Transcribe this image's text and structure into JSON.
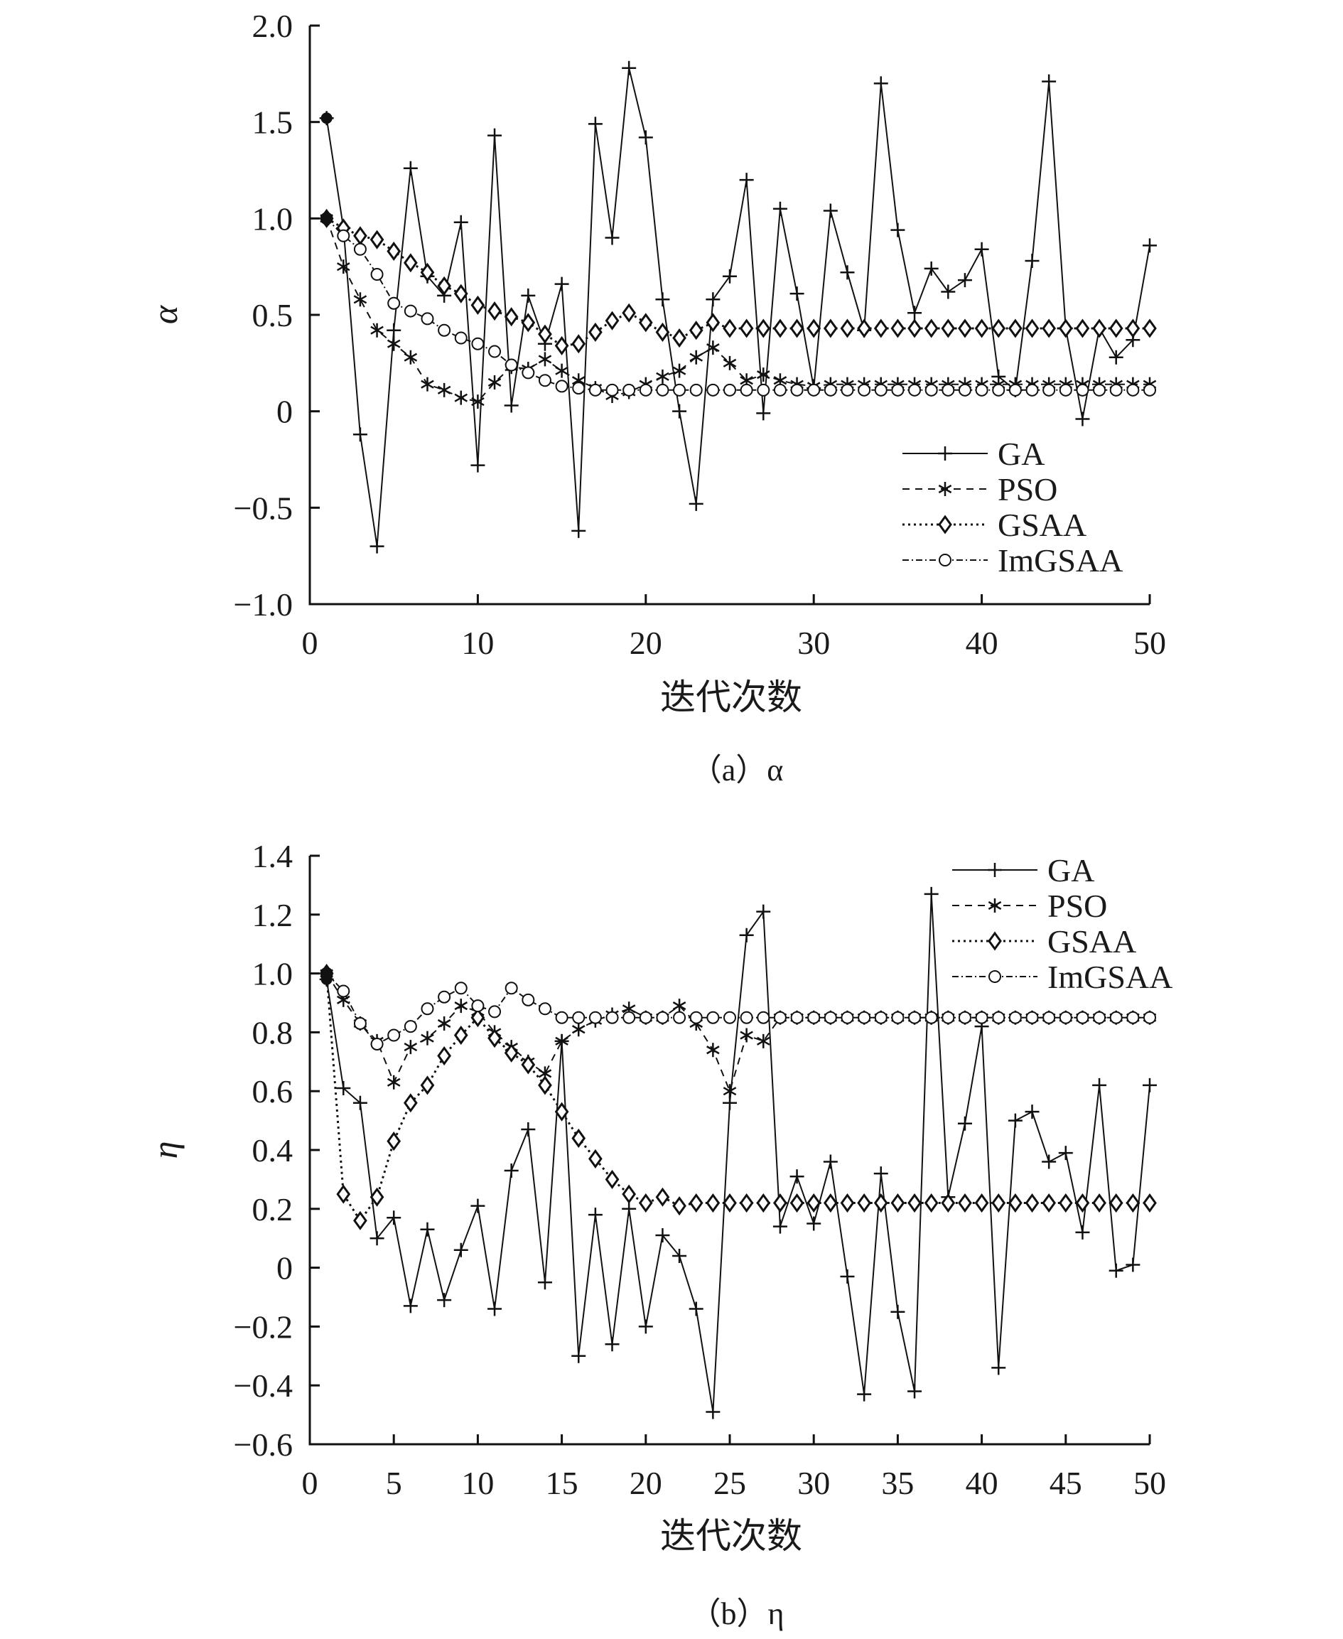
{
  "chart_data": [
    {
      "type": "line",
      "caption": "（a）α",
      "ylabel": "α",
      "xlabel": "迭代次数",
      "xlim": [
        0,
        50
      ],
      "ylim": [
        -1.0,
        2.0
      ],
      "xticks": [
        "0",
        "10",
        "20",
        "30",
        "40",
        "50"
      ],
      "yticks": [
        "−1.0",
        "−0.5",
        "0",
        "0.5",
        "1.0",
        "1.5",
        "2.0"
      ],
      "grid": false,
      "legend_position": "lower-right",
      "series": [
        {
          "name": "GA",
          "marker": "plus",
          "dash": "",
          "x": [
            1,
            2,
            3,
            4,
            5,
            6,
            7,
            8,
            9,
            10,
            11,
            12,
            13,
            14,
            15,
            16,
            17,
            18,
            19,
            20,
            21,
            22,
            23,
            24,
            25,
            26,
            27,
            28,
            29,
            30,
            31,
            32,
            33,
            34,
            35,
            36,
            37,
            38,
            39,
            40,
            41,
            42,
            43,
            44,
            45,
            46,
            47,
            48,
            49,
            50
          ],
          "y": [
            1.52,
            0.95,
            -0.12,
            -0.7,
            0.42,
            1.26,
            0.7,
            0.6,
            0.98,
            -0.28,
            1.43,
            0.03,
            0.6,
            0.35,
            0.66,
            -0.62,
            1.49,
            0.9,
            1.78,
            1.42,
            0.58,
            0.0,
            -0.48,
            0.58,
            0.7,
            1.2,
            -0.01,
            1.05,
            0.61,
            0.12,
            1.04,
            0.72,
            0.42,
            1.7,
            0.94,
            0.51,
            0.74,
            0.62,
            0.68,
            0.84,
            0.18,
            0.11,
            0.78,
            1.71,
            0.43,
            -0.04,
            0.43,
            0.28,
            0.37,
            0.86
          ]
        },
        {
          "name": "PSO",
          "marker": "star",
          "dash": "10,8",
          "x": [
            1,
            2,
            3,
            4,
            5,
            6,
            7,
            8,
            9,
            10,
            11,
            12,
            13,
            14,
            15,
            16,
            17,
            18,
            19,
            20,
            21,
            22,
            23,
            24,
            25,
            26,
            27,
            28,
            29,
            30,
            31,
            32,
            33,
            34,
            35,
            36,
            37,
            38,
            39,
            40,
            41,
            42,
            43,
            44,
            45,
            46,
            47,
            48,
            49,
            50
          ],
          "y": [
            1.0,
            0.75,
            0.58,
            0.42,
            0.35,
            0.28,
            0.14,
            0.11,
            0.07,
            0.05,
            0.15,
            0.23,
            0.22,
            0.27,
            0.21,
            0.16,
            0.12,
            0.08,
            0.1,
            0.14,
            0.18,
            0.21,
            0.28,
            0.33,
            0.25,
            0.16,
            0.19,
            0.16,
            0.14,
            0.13,
            0.14,
            0.14,
            0.14,
            0.14,
            0.14,
            0.14,
            0.14,
            0.14,
            0.14,
            0.14,
            0.14,
            0.14,
            0.14,
            0.14,
            0.14,
            0.14,
            0.14,
            0.14,
            0.14,
            0.14
          ]
        },
        {
          "name": "GSAA",
          "marker": "diamond",
          "dash": "3,5",
          "x": [
            1,
            2,
            3,
            4,
            5,
            6,
            7,
            8,
            9,
            10,
            11,
            12,
            13,
            14,
            15,
            16,
            17,
            18,
            19,
            20,
            21,
            22,
            23,
            24,
            25,
            26,
            27,
            28,
            29,
            30,
            31,
            32,
            33,
            34,
            35,
            36,
            37,
            38,
            39,
            40,
            41,
            42,
            43,
            44,
            45,
            46,
            47,
            48,
            49,
            50
          ],
          "y": [
            1.0,
            0.95,
            0.91,
            0.89,
            0.83,
            0.77,
            0.72,
            0.65,
            0.61,
            0.55,
            0.52,
            0.49,
            0.46,
            0.4,
            0.34,
            0.35,
            0.41,
            0.47,
            0.51,
            0.46,
            0.41,
            0.38,
            0.42,
            0.46,
            0.43,
            0.43,
            0.43,
            0.43,
            0.43,
            0.43,
            0.43,
            0.43,
            0.43,
            0.43,
            0.43,
            0.43,
            0.43,
            0.43,
            0.43,
            0.43,
            0.43,
            0.43,
            0.43,
            0.43,
            0.43,
            0.43,
            0.43,
            0.43,
            0.43,
            0.43
          ]
        },
        {
          "name": "ImGSAA",
          "marker": "circle",
          "dash": "9,4,2,4",
          "x": [
            1,
            2,
            3,
            4,
            5,
            6,
            7,
            8,
            9,
            10,
            11,
            12,
            13,
            14,
            15,
            16,
            17,
            18,
            19,
            20,
            21,
            22,
            23,
            24,
            25,
            26,
            27,
            28,
            29,
            30,
            31,
            32,
            33,
            34,
            35,
            36,
            37,
            38,
            39,
            40,
            41,
            42,
            43,
            44,
            45,
            46,
            47,
            48,
            49,
            50
          ],
          "y": [
            1.0,
            0.91,
            0.84,
            0.71,
            0.56,
            0.52,
            0.48,
            0.42,
            0.38,
            0.35,
            0.31,
            0.24,
            0.2,
            0.16,
            0.13,
            0.12,
            0.11,
            0.11,
            0.11,
            0.11,
            0.11,
            0.11,
            0.11,
            0.11,
            0.11,
            0.11,
            0.11,
            0.11,
            0.11,
            0.11,
            0.11,
            0.11,
            0.11,
            0.11,
            0.11,
            0.11,
            0.11,
            0.11,
            0.11,
            0.11,
            0.11,
            0.11,
            0.11,
            0.11,
            0.11,
            0.11,
            0.11,
            0.11,
            0.11,
            0.11
          ]
        }
      ]
    },
    {
      "type": "line",
      "caption": "（b）η",
      "ylabel": "η",
      "xlabel": "迭代次数",
      "xlim": [
        0,
        50
      ],
      "ylim": [
        -0.6,
        1.4
      ],
      "xticks": [
        "0",
        "5",
        "10",
        "15",
        "20",
        "25",
        "30",
        "35",
        "40",
        "45",
        "50"
      ],
      "yticks": [
        "−0.6",
        "−0.4",
        "−0.2",
        "0",
        "0.2",
        "0.4",
        "0.6",
        "0.8",
        "1.0",
        "1.2",
        "1.4"
      ],
      "grid": false,
      "legend_position": "top-right",
      "series": [
        {
          "name": "GA",
          "marker": "plus",
          "dash": "",
          "x": [
            1,
            2,
            3,
            4,
            5,
            6,
            7,
            8,
            9,
            10,
            11,
            12,
            13,
            14,
            15,
            16,
            17,
            18,
            19,
            20,
            21,
            22,
            23,
            24,
            25,
            26,
            27,
            28,
            29,
            30,
            31,
            32,
            33,
            34,
            35,
            36,
            37,
            38,
            39,
            40,
            41,
            42,
            43,
            44,
            45,
            46,
            47,
            48,
            49,
            50
          ],
          "y": [
            0.98,
            0.61,
            0.56,
            0.1,
            0.17,
            -0.13,
            0.13,
            -0.11,
            0.06,
            0.21,
            -0.14,
            0.33,
            0.47,
            -0.05,
            0.77,
            -0.3,
            0.18,
            -0.26,
            0.2,
            -0.2,
            0.11,
            0.04,
            -0.14,
            -0.49,
            0.56,
            1.13,
            1.21,
            0.14,
            0.31,
            0.15,
            0.36,
            -0.03,
            -0.43,
            0.32,
            -0.15,
            -0.42,
            1.27,
            0.24,
            0.49,
            0.82,
            -0.34,
            0.5,
            0.53,
            0.36,
            0.39,
            0.12,
            0.62,
            -0.01,
            0.01,
            0.62
          ]
        },
        {
          "name": "PSO",
          "marker": "star",
          "dash": "10,8",
          "x": [
            1,
            2,
            3,
            4,
            5,
            6,
            7,
            8,
            9,
            10,
            11,
            12,
            13,
            14,
            15,
            16,
            17,
            18,
            19,
            20,
            21,
            22,
            23,
            24,
            25,
            26,
            27,
            28,
            29,
            30,
            31,
            32,
            33,
            34,
            35,
            36,
            37,
            38,
            39,
            40,
            41,
            42,
            43,
            44,
            45,
            46,
            47,
            48,
            49,
            50
          ],
          "y": [
            1.0,
            0.91,
            0.83,
            0.77,
            0.63,
            0.75,
            0.78,
            0.83,
            0.89,
            0.87,
            0.8,
            0.75,
            0.7,
            0.66,
            0.77,
            0.81,
            0.84,
            0.86,
            0.88,
            0.85,
            0.85,
            0.89,
            0.83,
            0.74,
            0.6,
            0.79,
            0.77,
            0.85,
            0.85,
            0.85,
            0.85,
            0.85,
            0.85,
            0.85,
            0.85,
            0.85,
            0.85,
            0.85,
            0.85,
            0.85,
            0.85,
            0.85,
            0.85,
            0.85,
            0.85,
            0.85,
            0.85,
            0.85,
            0.85,
            0.85
          ]
        },
        {
          "name": "GSAA",
          "marker": "diamond",
          "dash": "3,5",
          "x": [
            1,
            2,
            3,
            4,
            5,
            6,
            7,
            8,
            9,
            10,
            11,
            12,
            13,
            14,
            15,
            16,
            17,
            18,
            19,
            20,
            21,
            22,
            23,
            24,
            25,
            26,
            27,
            28,
            29,
            30,
            31,
            32,
            33,
            34,
            35,
            36,
            37,
            38,
            39,
            40,
            41,
            42,
            43,
            44,
            45,
            46,
            47,
            48,
            49,
            50
          ],
          "y": [
            1.0,
            0.25,
            0.16,
            0.24,
            0.43,
            0.56,
            0.62,
            0.72,
            0.79,
            0.85,
            0.78,
            0.73,
            0.69,
            0.62,
            0.53,
            0.44,
            0.37,
            0.3,
            0.25,
            0.22,
            0.24,
            0.21,
            0.22,
            0.22,
            0.22,
            0.22,
            0.22,
            0.22,
            0.22,
            0.22,
            0.22,
            0.22,
            0.22,
            0.22,
            0.22,
            0.22,
            0.22,
            0.22,
            0.22,
            0.22,
            0.22,
            0.22,
            0.22,
            0.22,
            0.22,
            0.22,
            0.22,
            0.22,
            0.22,
            0.22
          ]
        },
        {
          "name": "ImGSAA",
          "marker": "circle",
          "dash": "9,4,2,4",
          "x": [
            1,
            2,
            3,
            4,
            5,
            6,
            7,
            8,
            9,
            10,
            11,
            12,
            13,
            14,
            15,
            16,
            17,
            18,
            19,
            20,
            21,
            22,
            23,
            24,
            25,
            26,
            27,
            28,
            29,
            30,
            31,
            32,
            33,
            34,
            35,
            36,
            37,
            38,
            39,
            40,
            41,
            42,
            43,
            44,
            45,
            46,
            47,
            48,
            49,
            50
          ],
          "y": [
            1.0,
            0.94,
            0.83,
            0.76,
            0.79,
            0.82,
            0.88,
            0.92,
            0.95,
            0.89,
            0.87,
            0.95,
            0.91,
            0.88,
            0.85,
            0.85,
            0.85,
            0.85,
            0.85,
            0.85,
            0.85,
            0.85,
            0.85,
            0.85,
            0.85,
            0.85,
            0.85,
            0.85,
            0.85,
            0.85,
            0.85,
            0.85,
            0.85,
            0.85,
            0.85,
            0.85,
            0.85,
            0.85,
            0.85,
            0.85,
            0.85,
            0.85,
            0.85,
            0.85,
            0.85,
            0.85,
            0.85,
            0.85,
            0.85,
            0.85
          ]
        }
      ]
    }
  ]
}
